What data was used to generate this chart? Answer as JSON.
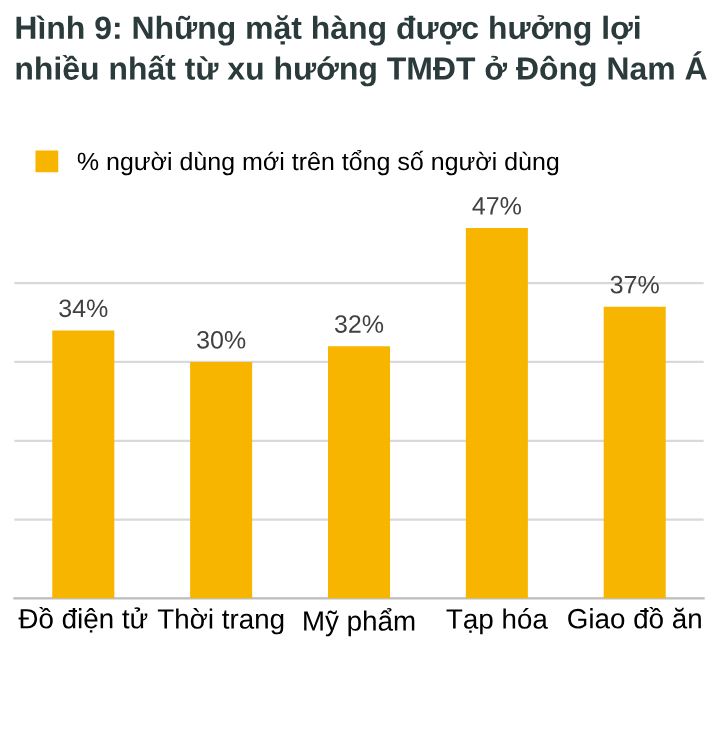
{
  "chart_data": {
    "type": "bar",
    "title": "Hình 9: Những mặt hàng được hưởng lợi nhiều nhất từ xu hướng TMĐT ở Đông Nam Á",
    "categories": [
      "Đồ điện tử",
      "Thời trang",
      "Mỹ phẩm",
      "Tạp hóa",
      "Giao đồ ăn"
    ],
    "series": [
      {
        "name": "% người dùng mới trên tổng số người dùng",
        "color": "#f7b500",
        "values": [
          34,
          30,
          32,
          47,
          37
        ],
        "value_labels": [
          "34%",
          "30%",
          "32%",
          "47%",
          "37%"
        ]
      }
    ],
    "tick_labels": "x",
    "grid": "y",
    "legend": "top"
  }
}
